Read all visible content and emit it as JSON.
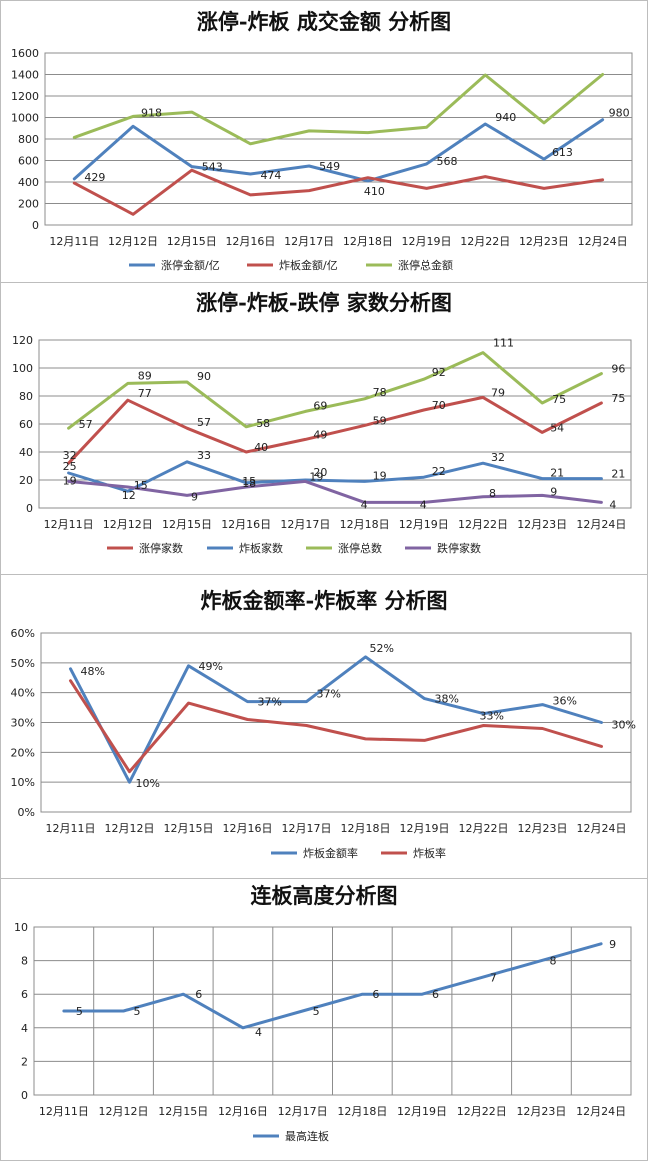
{
  "chart_data": [
    {
      "type": "line",
      "title": "涨停-炸板 成交金额 分析图",
      "categories": [
        "12月11日",
        "12月12日",
        "12月15日",
        "12月16日",
        "12月17日",
        "12月18日",
        "12月19日",
        "12月22日",
        "12月23日",
        "12月24日"
      ],
      "ylim": [
        0,
        1600
      ],
      "yticks": [
        "0",
        "200",
        "400",
        "600",
        "800",
        "1000",
        "1200",
        "1400",
        "1600"
      ],
      "grid": true,
      "legend": "bottom",
      "series": [
        {
          "name": "涨停金额/亿",
          "color": "#4f81bd",
          "values": [
            429,
            918,
            543,
            474,
            549,
            410,
            568,
            940,
            613,
            980
          ],
          "labels": [
            "429",
            "918",
            "543",
            "474",
            "549",
            "410",
            "568",
            "940",
            "613",
            "980"
          ]
        },
        {
          "name": "炸板金额/亿",
          "color": "#c0504d",
          "values": [
            390,
            100,
            510,
            280,
            320,
            440,
            340,
            450,
            340,
            420
          ]
        },
        {
          "name": "涨停总金额",
          "color": "#9bbb59",
          "values": [
            815,
            1010,
            1050,
            755,
            875,
            860,
            910,
            1395,
            950,
            1400
          ]
        }
      ]
    },
    {
      "type": "line",
      "title": "涨停-炸板-跌停 家数分析图",
      "categories": [
        "12月11日",
        "12月12日",
        "12月15日",
        "12月16日",
        "12月17日",
        "12月18日",
        "12月19日",
        "12月22日",
        "12月23日",
        "12月24日"
      ],
      "ylim": [
        0,
        120
      ],
      "yticks": [
        "0",
        "20",
        "40",
        "60",
        "80",
        "100",
        "120"
      ],
      "grid": true,
      "legend": "bottom",
      "series": [
        {
          "name": "涨停家数",
          "color": "#c0504d",
          "values": [
            32,
            77,
            57,
            40,
            49,
            59,
            70,
            79,
            54,
            75
          ],
          "labels": [
            "32",
            "77",
            "57",
            "40",
            "49",
            "59",
            "70",
            "79",
            "54",
            "75"
          ]
        },
        {
          "name": "炸板家数",
          "color": "#4f81bd",
          "values": [
            25,
            12,
            33,
            18,
            20,
            19,
            22,
            32,
            21,
            21
          ],
          "labels": [
            "25",
            "12",
            "33",
            "18",
            "20",
            "19",
            "22",
            "32",
            "21",
            "21"
          ]
        },
        {
          "name": "涨停总数",
          "color": "#9bbb59",
          "values": [
            57,
            89,
            90,
            58,
            69,
            78,
            92,
            111,
            75,
            96
          ],
          "labels": [
            "57",
            "89",
            "90",
            "58",
            "69",
            "78",
            "92",
            "111",
            "75",
            "96"
          ]
        },
        {
          "name": "跌停家数",
          "color": "#8064a2",
          "values": [
            19,
            15,
            9,
            15,
            19,
            4,
            4,
            8,
            9,
            4
          ],
          "labels": [
            "19",
            "15",
            "9",
            "15",
            "19",
            "4",
            "4",
            "8",
            "9",
            "4"
          ]
        }
      ]
    },
    {
      "type": "line",
      "title": "炸板金额率-炸板率 分析图",
      "categories": [
        "12月11日",
        "12月12日",
        "12月15日",
        "12月16日",
        "12月17日",
        "12月18日",
        "12月19日",
        "12月22日",
        "12月23日",
        "12月24日"
      ],
      "ylim": [
        0,
        60
      ],
      "yticks": [
        "0%",
        "10%",
        "20%",
        "30%",
        "40%",
        "50%",
        "60%"
      ],
      "grid": true,
      "legend": "bottom",
      "series": [
        {
          "name": "炸板金额率",
          "color": "#4f81bd",
          "values": [
            48,
            10,
            49,
            37,
            37,
            52,
            38,
            33,
            36,
            30
          ],
          "labels": [
            "48%",
            "10%",
            "49%",
            "37%",
            "37%",
            "52%",
            "38%",
            "33%",
            "36%",
            "30%"
          ]
        },
        {
          "name": "炸板率",
          "color": "#c0504d",
          "values": [
            44,
            13.5,
            36.5,
            31,
            29,
            24.5,
            24,
            29,
            28,
            22
          ]
        }
      ]
    },
    {
      "type": "line",
      "title": "连板高度分析图",
      "categories": [
        "12月11日",
        "12月12日",
        "12月15日",
        "12月16日",
        "12月17日",
        "12月18日",
        "12月19日",
        "12月22日",
        "12月23日",
        "12月24日"
      ],
      "ylim": [
        0,
        10
      ],
      "yticks": [
        "0",
        "2",
        "4",
        "6",
        "8",
        "10"
      ],
      "grid": true,
      "vgrid": true,
      "legend": "bottom",
      "series": [
        {
          "name": "最高连板",
          "color": "#4f81bd",
          "values": [
            5,
            5,
            6,
            4,
            5,
            6,
            6,
            7,
            8,
            9
          ],
          "labels": [
            "5",
            "5",
            "6",
            "4",
            "5",
            "6",
            "6",
            "7",
            "8",
            "9"
          ]
        }
      ]
    }
  ]
}
